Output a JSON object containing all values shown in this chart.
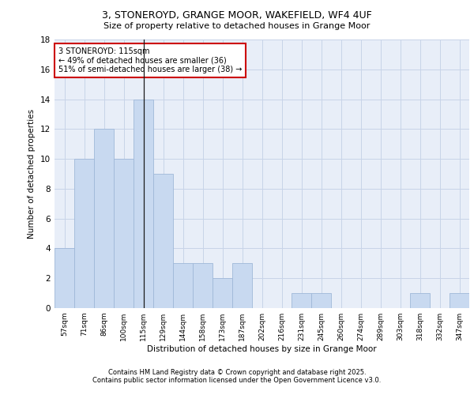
{
  "title1": "3, STONEROYD, GRANGE MOOR, WAKEFIELD, WF4 4UF",
  "title2": "Size of property relative to detached houses in Grange Moor",
  "xlabel": "Distribution of detached houses by size in Grange Moor",
  "ylabel": "Number of detached properties",
  "categories": [
    "57sqm",
    "71sqm",
    "86sqm",
    "100sqm",
    "115sqm",
    "129sqm",
    "144sqm",
    "158sqm",
    "173sqm",
    "187sqm",
    "202sqm",
    "216sqm",
    "231sqm",
    "245sqm",
    "260sqm",
    "274sqm",
    "289sqm",
    "303sqm",
    "318sqm",
    "332sqm",
    "347sqm"
  ],
  "values": [
    4,
    10,
    12,
    10,
    14,
    9,
    3,
    3,
    2,
    3,
    0,
    0,
    1,
    1,
    0,
    0,
    0,
    0,
    1,
    0,
    1
  ],
  "bar_color": "#c8d9f0",
  "bar_edge_color": "#a0b8d8",
  "highlight_index": 4,
  "highlight_line_color": "#1a1a1a",
  "annotation_text": "3 STONEROYD: 115sqm\n← 49% of detached houses are smaller (36)\n51% of semi-detached houses are larger (38) →",
  "annotation_box_color": "#ffffff",
  "annotation_box_edge": "#cc0000",
  "grid_color": "#c8d4e8",
  "background_color": "#e8eef8",
  "ylim": [
    0,
    18
  ],
  "yticks": [
    0,
    2,
    4,
    6,
    8,
    10,
    12,
    14,
    16,
    18
  ],
  "footer1": "Contains HM Land Registry data © Crown copyright and database right 2025.",
  "footer2": "Contains public sector information licensed under the Open Government Licence v3.0."
}
